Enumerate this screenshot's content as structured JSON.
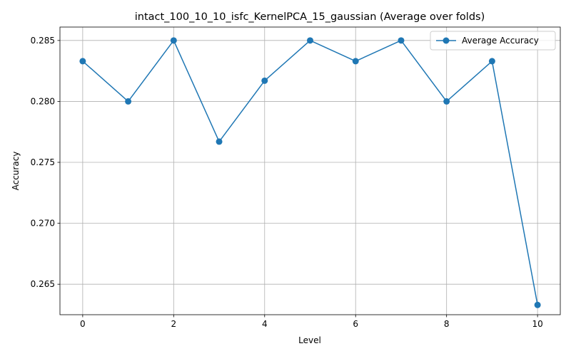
{
  "chart_data": {
    "type": "line",
    "title": "intact_100_10_10_isfc_KernelPCA_15_gaussian (Average over folds)",
    "xlabel": "Level",
    "ylabel": "Accuracy",
    "xlim": [
      -0.5,
      10.5
    ],
    "ylim": [
      0.2625,
      0.2861
    ],
    "xticks": [
      0,
      2,
      4,
      6,
      8,
      10
    ],
    "yticks": [
      0.265,
      0.27,
      0.275,
      0.28,
      0.285
    ],
    "ytick_labels": [
      "0.265",
      "0.270",
      "0.275",
      "0.280",
      "0.285"
    ],
    "grid": true,
    "legend": "top-right",
    "series": [
      {
        "name": "Average Accuracy",
        "color": "#1f77b4",
        "marker": "circle",
        "x": [
          0,
          1,
          2,
          3,
          4,
          5,
          6,
          7,
          8,
          9,
          10
        ],
        "y": [
          0.2833,
          0.28,
          0.285,
          0.2767,
          0.2817,
          0.285,
          0.2833,
          0.285,
          0.28,
          0.2833,
          0.2633
        ]
      }
    ]
  }
}
